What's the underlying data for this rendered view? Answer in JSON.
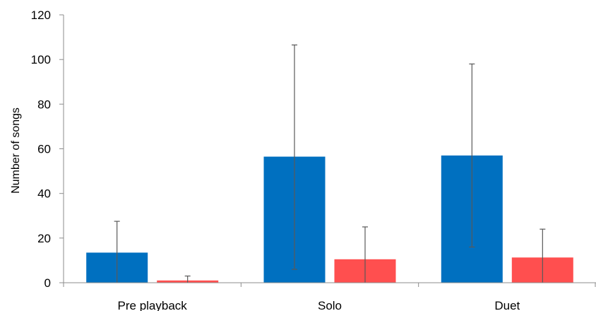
{
  "chart_data": {
    "type": "bar",
    "categories": [
      "Pre playback",
      "Solo",
      "Duet"
    ],
    "series": [
      {
        "color": "#0070C0",
        "values": [
          13.5,
          56.5,
          57.0
        ],
        "error_upper": [
          27.5,
          106.5,
          98.0
        ],
        "error_lower": [
          0,
          6.0,
          16.0
        ]
      },
      {
        "color": "#FF4F4F",
        "values": [
          1.0,
          10.5,
          11.3
        ],
        "error_upper": [
          3.0,
          25.0,
          24.0
        ],
        "error_lower": [
          0,
          0,
          0
        ]
      }
    ],
    "ylabel": "Number of songs",
    "xlabel": "",
    "ylim": [
      0,
      120
    ],
    "yticks": [
      0,
      20,
      40,
      60,
      80,
      100,
      120
    ],
    "grid": false,
    "legend": "none",
    "axis_color": "#8C8C8C",
    "errorbar_color": "#595959"
  }
}
